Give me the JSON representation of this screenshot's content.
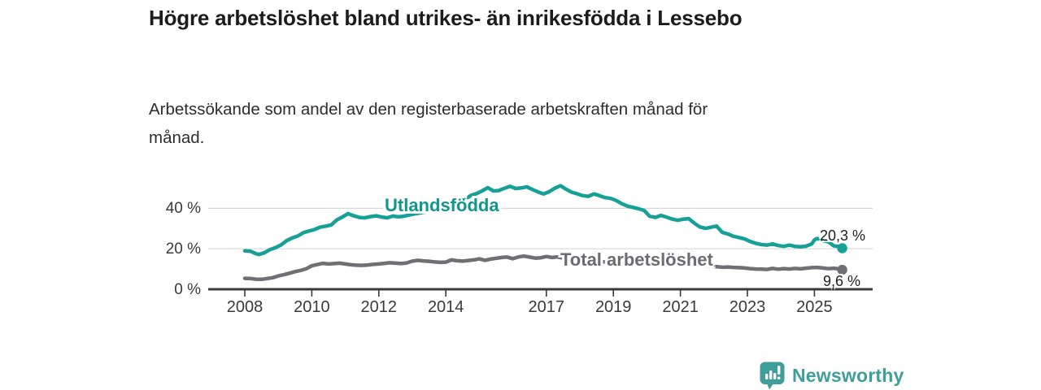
{
  "header": {
    "title": "Högre arbetslöshet bland utrikes- än inrikesfödda i Lessebo",
    "subtitle": "Arbetssökande som andel av den registerbaserade arbetskraften månad för månad."
  },
  "chart_data": {
    "type": "line",
    "title": "Högre arbetslöshet bland utrikes- än inrikesfödda i Lessebo",
    "subtitle": "Arbetssökande som andel av den registerbaserade arbetskraften månad för månad.",
    "grid": "horizontal",
    "x_axis": {
      "tick_years": [
        2008,
        2010,
        2012,
        2014,
        2017,
        2019,
        2021,
        2023,
        2025
      ],
      "tick_labels": [
        "2008",
        "2010",
        "2012",
        "2014",
        "2017",
        "2019",
        "2021",
        "2023",
        "2025"
      ],
      "range": [
        2008,
        2025.83
      ]
    },
    "y_axis": {
      "tick_values": [
        0,
        20,
        40
      ],
      "tick_labels": [
        "0 %",
        "20 %",
        "40 %"
      ],
      "unit": "%",
      "range": [
        0,
        56
      ]
    },
    "colors": {
      "axis": "#3b3b3b",
      "grid": "#d8d8d8",
      "teal": "#17a096",
      "gray": "#6f6f74"
    },
    "series": [
      {
        "name": "Utlandsfödda",
        "color": "#17a096",
        "end_value": 20.3,
        "end_label": "20,3 %",
        "points": [
          [
            2008.0,
            19.0
          ],
          [
            2008.17,
            18.8
          ],
          [
            2008.33,
            17.6
          ],
          [
            2008.42,
            17.2
          ],
          [
            2008.58,
            18.0
          ],
          [
            2008.75,
            19.6
          ],
          [
            2008.92,
            20.6
          ],
          [
            2009.08,
            21.9
          ],
          [
            2009.25,
            24.0
          ],
          [
            2009.42,
            25.4
          ],
          [
            2009.58,
            26.3
          ],
          [
            2009.75,
            28.0
          ],
          [
            2009.92,
            28.8
          ],
          [
            2010.08,
            29.5
          ],
          [
            2010.25,
            30.7
          ],
          [
            2010.42,
            31.2
          ],
          [
            2010.58,
            31.8
          ],
          [
            2010.75,
            34.3
          ],
          [
            2010.92,
            35.8
          ],
          [
            2011.08,
            37.4
          ],
          [
            2011.25,
            36.3
          ],
          [
            2011.42,
            35.5
          ],
          [
            2011.58,
            35.3
          ],
          [
            2011.75,
            35.9
          ],
          [
            2011.92,
            36.3
          ],
          [
            2012.08,
            35.7
          ],
          [
            2012.25,
            35.3
          ],
          [
            2012.42,
            36.2
          ],
          [
            2012.58,
            35.8
          ],
          [
            2012.75,
            36.1
          ],
          [
            2012.92,
            36.8
          ],
          [
            2013.08,
            37.3
          ],
          [
            2013.25,
            37.8
          ],
          [
            2013.42,
            38.3
          ],
          [
            2013.58,
            38.8
          ],
          [
            2013.75,
            39.4
          ],
          [
            2013.92,
            40.3
          ],
          [
            2014.08,
            41.4
          ],
          [
            2014.25,
            42.1
          ],
          [
            2014.42,
            43.6
          ],
          [
            2014.58,
            44.5
          ],
          [
            2014.75,
            46.4
          ],
          [
            2014.92,
            47.3
          ],
          [
            2015.08,
            48.6
          ],
          [
            2015.25,
            50.2
          ],
          [
            2015.42,
            48.6
          ],
          [
            2015.58,
            48.8
          ],
          [
            2015.75,
            49.9
          ],
          [
            2015.92,
            50.9
          ],
          [
            2016.08,
            49.8
          ],
          [
            2016.25,
            50.1
          ],
          [
            2016.42,
            50.6
          ],
          [
            2016.58,
            49.3
          ],
          [
            2016.75,
            48.1
          ],
          [
            2016.92,
            47.1
          ],
          [
            2017.08,
            48.2
          ],
          [
            2017.25,
            49.9
          ],
          [
            2017.42,
            51.2
          ],
          [
            2017.58,
            49.5
          ],
          [
            2017.75,
            48.0
          ],
          [
            2017.92,
            47.2
          ],
          [
            2018.08,
            46.3
          ],
          [
            2018.25,
            45.9
          ],
          [
            2018.42,
            47.1
          ],
          [
            2018.58,
            46.3
          ],
          [
            2018.75,
            45.3
          ],
          [
            2018.92,
            44.9
          ],
          [
            2019.08,
            43.9
          ],
          [
            2019.25,
            42.3
          ],
          [
            2019.42,
            41.1
          ],
          [
            2019.58,
            40.5
          ],
          [
            2019.75,
            39.8
          ],
          [
            2019.92,
            38.9
          ],
          [
            2020.08,
            36.1
          ],
          [
            2020.25,
            35.5
          ],
          [
            2020.42,
            36.5
          ],
          [
            2020.58,
            35.7
          ],
          [
            2020.75,
            34.7
          ],
          [
            2020.92,
            34.1
          ],
          [
            2021.08,
            34.6
          ],
          [
            2021.25,
            34.9
          ],
          [
            2021.42,
            32.6
          ],
          [
            2021.58,
            30.8
          ],
          [
            2021.75,
            30.1
          ],
          [
            2021.92,
            30.7
          ],
          [
            2022.08,
            31.2
          ],
          [
            2022.25,
            28.1
          ],
          [
            2022.42,
            27.3
          ],
          [
            2022.58,
            26.2
          ],
          [
            2022.75,
            25.6
          ],
          [
            2022.92,
            24.8
          ],
          [
            2023.08,
            23.6
          ],
          [
            2023.25,
            22.7
          ],
          [
            2023.42,
            22.1
          ],
          [
            2023.58,
            21.8
          ],
          [
            2023.75,
            22.4
          ],
          [
            2023.92,
            21.6
          ],
          [
            2024.08,
            21.2
          ],
          [
            2024.25,
            21.8
          ],
          [
            2024.42,
            21.2
          ],
          [
            2024.58,
            21.0
          ],
          [
            2024.75,
            21.3
          ],
          [
            2024.92,
            22.4
          ],
          [
            2025.0,
            24.4
          ],
          [
            2025.08,
            25.1
          ],
          [
            2025.25,
            24.1
          ],
          [
            2025.42,
            23.4
          ],
          [
            2025.58,
            21.4
          ],
          [
            2025.75,
            21.1
          ],
          [
            2025.83,
            20.3
          ]
        ]
      },
      {
        "name": "Total arbetslöshet",
        "color": "#6f6f74",
        "end_value": 9.6,
        "end_label": "9,6 %",
        "points": [
          [
            2008.0,
            5.4
          ],
          [
            2008.17,
            5.3
          ],
          [
            2008.33,
            5.0
          ],
          [
            2008.5,
            4.9
          ],
          [
            2008.67,
            5.3
          ],
          [
            2008.83,
            5.7
          ],
          [
            2009.0,
            6.6
          ],
          [
            2009.17,
            7.2
          ],
          [
            2009.33,
            7.9
          ],
          [
            2009.5,
            8.7
          ],
          [
            2009.67,
            9.3
          ],
          [
            2009.83,
            10.1
          ],
          [
            2010.0,
            11.6
          ],
          [
            2010.17,
            12.2
          ],
          [
            2010.33,
            12.8
          ],
          [
            2010.5,
            12.5
          ],
          [
            2010.67,
            12.7
          ],
          [
            2010.83,
            12.9
          ],
          [
            2011.0,
            12.5
          ],
          [
            2011.17,
            12.1
          ],
          [
            2011.33,
            11.9
          ],
          [
            2011.5,
            11.8
          ],
          [
            2011.67,
            12.0
          ],
          [
            2011.83,
            12.3
          ],
          [
            2012.0,
            12.5
          ],
          [
            2012.17,
            12.8
          ],
          [
            2012.33,
            13.1
          ],
          [
            2012.5,
            12.9
          ],
          [
            2012.67,
            12.7
          ],
          [
            2012.83,
            13.0
          ],
          [
            2013.0,
            13.9
          ],
          [
            2013.17,
            14.3
          ],
          [
            2013.33,
            14.0
          ],
          [
            2013.5,
            13.8
          ],
          [
            2013.67,
            13.5
          ],
          [
            2013.83,
            13.3
          ],
          [
            2014.0,
            13.4
          ],
          [
            2014.17,
            14.5
          ],
          [
            2014.33,
            14.1
          ],
          [
            2014.5,
            13.9
          ],
          [
            2014.67,
            14.2
          ],
          [
            2014.83,
            14.5
          ],
          [
            2015.0,
            15.0
          ],
          [
            2015.17,
            14.3
          ],
          [
            2015.33,
            14.9
          ],
          [
            2015.5,
            15.3
          ],
          [
            2015.67,
            15.7
          ],
          [
            2015.83,
            15.9
          ],
          [
            2016.0,
            15.1
          ],
          [
            2016.17,
            16.0
          ],
          [
            2016.33,
            16.4
          ],
          [
            2016.5,
            15.9
          ],
          [
            2016.67,
            15.4
          ],
          [
            2016.83,
            15.6
          ],
          [
            2017.0,
            16.2
          ],
          [
            2017.17,
            15.7
          ],
          [
            2017.33,
            16.0
          ],
          [
            2017.5,
            15.4
          ],
          [
            2017.67,
            15.1
          ],
          [
            2017.83,
            14.8
          ],
          [
            2018.0,
            14.5
          ],
          [
            2018.25,
            14.1
          ],
          [
            2018.5,
            13.9
          ],
          [
            2018.75,
            13.5
          ],
          [
            2019.0,
            13.7
          ],
          [
            2019.25,
            13.1
          ],
          [
            2019.5,
            12.7
          ],
          [
            2019.75,
            12.5
          ],
          [
            2020.0,
            12.9
          ],
          [
            2020.25,
            13.3
          ],
          [
            2020.5,
            12.9
          ],
          [
            2020.75,
            12.5
          ],
          [
            2021.0,
            12.2
          ],
          [
            2021.25,
            11.9
          ],
          [
            2021.5,
            11.7
          ],
          [
            2021.75,
            11.5
          ],
          [
            2022.0,
            11.3
          ],
          [
            2022.25,
            10.9
          ],
          [
            2022.42,
            11.0
          ],
          [
            2022.58,
            10.8
          ],
          [
            2022.75,
            10.7
          ],
          [
            2022.92,
            10.5
          ],
          [
            2023.08,
            10.2
          ],
          [
            2023.25,
            10.0
          ],
          [
            2023.42,
            9.9
          ],
          [
            2023.58,
            9.8
          ],
          [
            2023.75,
            10.3
          ],
          [
            2023.92,
            9.9
          ],
          [
            2024.08,
            10.2
          ],
          [
            2024.25,
            10.0
          ],
          [
            2024.42,
            10.3
          ],
          [
            2024.58,
            10.1
          ],
          [
            2024.75,
            10.4
          ],
          [
            2024.92,
            10.7
          ],
          [
            2025.08,
            10.8
          ],
          [
            2025.25,
            10.5
          ],
          [
            2025.42,
            10.2
          ],
          [
            2025.58,
            10.4
          ],
          [
            2025.75,
            10.0
          ],
          [
            2025.83,
            9.6
          ]
        ]
      }
    ]
  },
  "footer": {
    "brand": "Newsworthy",
    "brand_color": "#3f9e99",
    "logo_icon": "bar-chart-speech-bubble-icon"
  }
}
